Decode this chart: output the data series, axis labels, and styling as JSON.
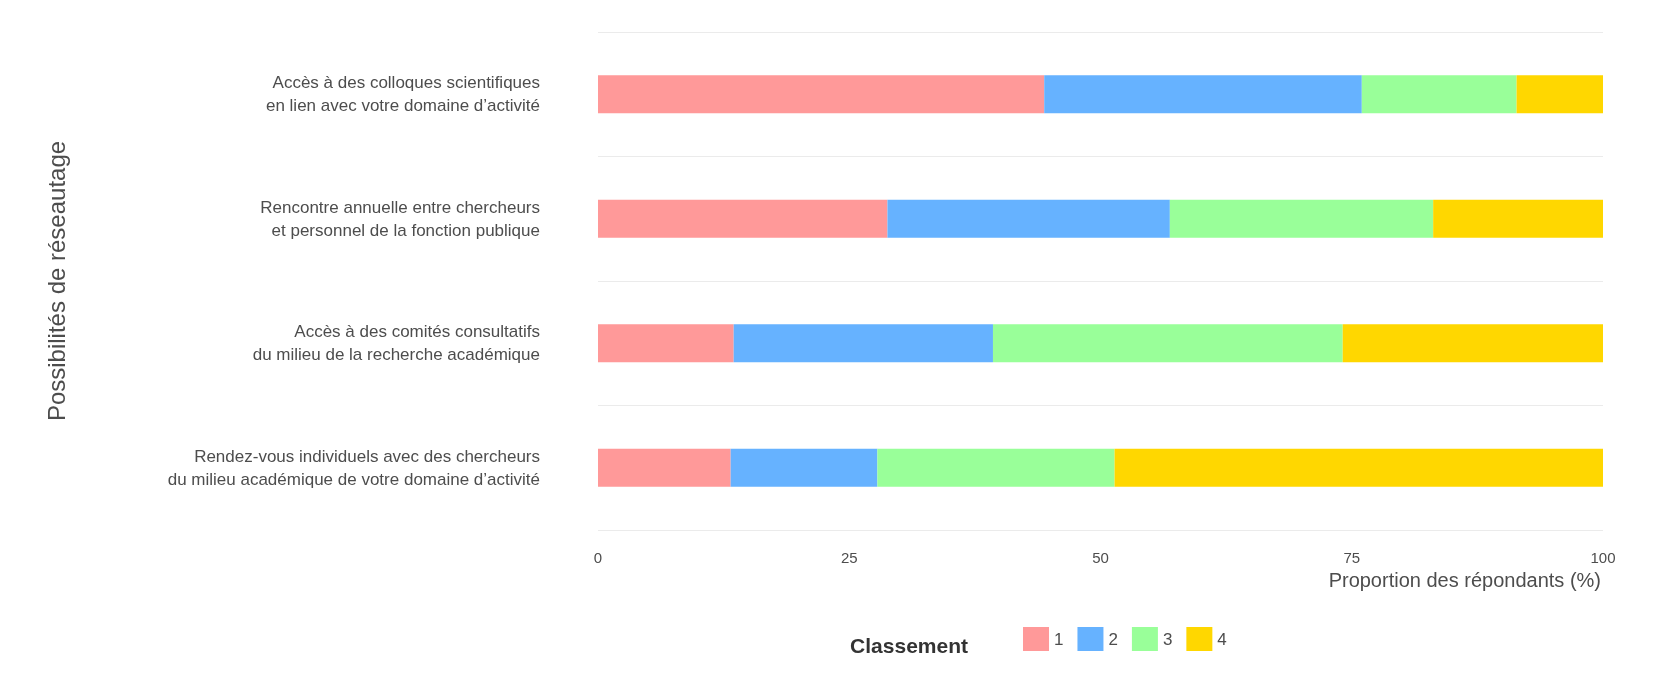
{
  "chart_data": {
    "type": "bar",
    "orientation": "horizontal",
    "stacked": true,
    "xlabel": "Proportion des répondants (%)",
    "ylabel": "Possibilités de réseautage",
    "legend_title": "Classement",
    "categories": [
      "Accès à des colloques scientifiques\nen lien avec votre domaine d’activité",
      "Rencontre annuelle entre chercheurs\net personnel de la fonction publique",
      "Accès à des comités consultatifs\ndu milieu de la recherche académique",
      "Rendez-vous individuels avec des chercheurs\ndu milieu académique de votre domaine d’activité"
    ],
    "series": [
      {
        "name": "1",
        "color": "#ff9999",
        "values": [
          44.4,
          28.8,
          13.5,
          13.2
        ]
      },
      {
        "name": "2",
        "color": "#66b2ff",
        "values": [
          31.6,
          28.1,
          25.8,
          14.6
        ]
      },
      {
        "name": "3",
        "color": "#99ff99",
        "values": [
          15.4,
          26.2,
          34.8,
          23.6
        ]
      },
      {
        "name": "4",
        "color": "#ffd700",
        "values": [
          8.6,
          16.9,
          25.9,
          48.6
        ]
      }
    ],
    "xlim": [
      0,
      100
    ],
    "xticks": [
      0,
      25,
      50,
      75,
      100
    ],
    "grid": "y",
    "legend": "bottom"
  }
}
